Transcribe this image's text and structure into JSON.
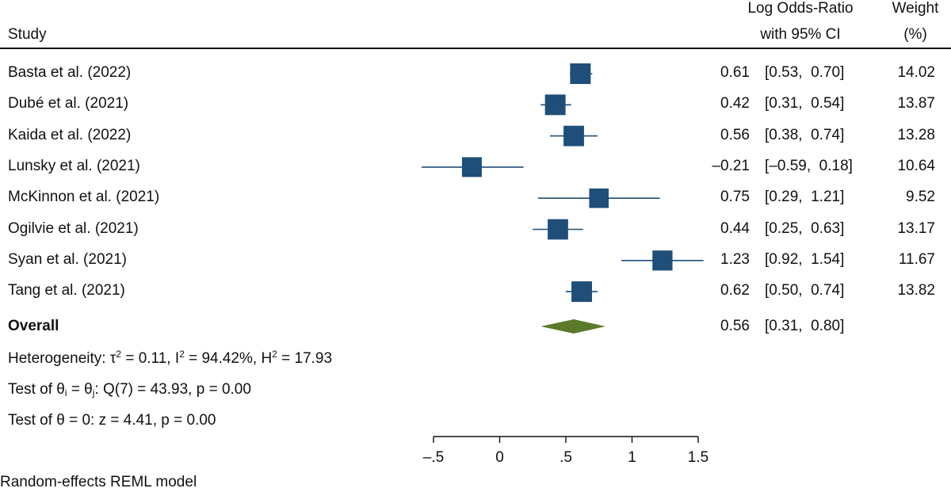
{
  "header": {
    "study": "Study",
    "effect_line1": "Log Odds-Ratio",
    "effect_line2": "with 95% CI",
    "weight_line1": "Weight",
    "weight_line2": "(%)"
  },
  "overall_label": "Overall",
  "heterogeneity": {
    "prefix": "Heterogeneity: τ",
    "tau_sup": "2",
    "t1": " = 0.11, I",
    "i_sup": "2",
    "t2": " = 94.42%, H",
    "h_sup": "2",
    "t3": " = 17.93"
  },
  "test_theta_equal": {
    "prefix": "Test of θ",
    "sub_i": "i",
    "mid": " = θ",
    "sub_j": "j",
    "rest": ": Q(7) = 43.93, p = 0.00"
  },
  "test_theta_zero": "Test of θ = 0: z = 4.41, p = 0.00",
  "footnote": "Random-effects REML model",
  "colors": {
    "marker": "#1f4e79",
    "diamond": "#5a7a2a",
    "line": "#1f4e79",
    "axis": "#111111"
  },
  "chart_data": {
    "type": "forest",
    "xlim": [
      -0.5,
      1.5
    ],
    "xticks": [
      {
        "value": -0.5,
        "label": "–.5"
      },
      {
        "value": 0,
        "label": "0"
      },
      {
        "value": 0.5,
        "label": ".5"
      },
      {
        "value": 1,
        "label": "1"
      },
      {
        "value": 1.5,
        "label": "1.5"
      }
    ],
    "studies": [
      {
        "name": "Basta et al. (2022)",
        "est": 0.61,
        "lo": 0.53,
        "hi": 0.7,
        "est_label": "0.61",
        "ci_label": "[0.53,  0.70]",
        "weight": 14.02,
        "weight_label": "14.02"
      },
      {
        "name": "Dubé et al. (2021)",
        "est": 0.42,
        "lo": 0.31,
        "hi": 0.54,
        "est_label": "0.42",
        "ci_label": "[0.31,  0.54]",
        "weight": 13.87,
        "weight_label": "13.87"
      },
      {
        "name": "Kaida et al. (2022)",
        "est": 0.56,
        "lo": 0.38,
        "hi": 0.74,
        "est_label": "0.56",
        "ci_label": "[0.38,  0.74]",
        "weight": 13.28,
        "weight_label": "13.28"
      },
      {
        "name": "Lunsky et al. (2021)",
        "est": -0.21,
        "lo": -0.59,
        "hi": 0.18,
        "est_label": "–0.21",
        "ci_label": "[–0.59,  0.18]",
        "weight": 10.64,
        "weight_label": "10.64"
      },
      {
        "name": "McKinnon et al. (2021)",
        "est": 0.75,
        "lo": 0.29,
        "hi": 1.21,
        "est_label": "0.75",
        "ci_label": "[0.29,  1.21]",
        "weight": 9.52,
        "weight_label": "9.52"
      },
      {
        "name": "Ogilvie et al. (2021)",
        "est": 0.44,
        "lo": 0.25,
        "hi": 0.63,
        "est_label": "0.44",
        "ci_label": "[0.25,  0.63]",
        "weight": 13.17,
        "weight_label": "13.17"
      },
      {
        "name": "Syan et al. (2021)",
        "est": 1.23,
        "lo": 0.92,
        "hi": 1.54,
        "est_label": "1.23",
        "ci_label": "[0.92,  1.54]",
        "weight": 11.67,
        "weight_label": "11.67"
      },
      {
        "name": "Tang et al. (2021)",
        "est": 0.62,
        "lo": 0.5,
        "hi": 0.74,
        "est_label": "0.62",
        "ci_label": "[0.50,  0.74]",
        "weight": 13.82,
        "weight_label": "13.82"
      }
    ],
    "overall": {
      "est": 0.56,
      "lo": 0.31,
      "hi": 0.8,
      "est_label": "0.56",
      "ci_label": "[0.31,  0.80]"
    }
  }
}
